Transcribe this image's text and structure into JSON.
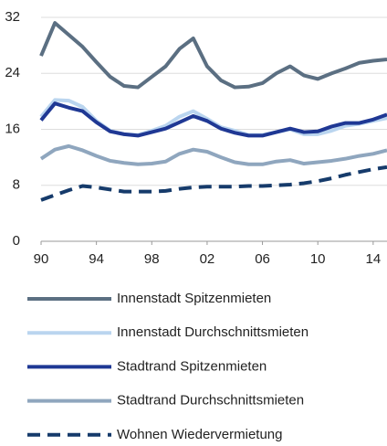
{
  "chart_data": {
    "type": "line",
    "x": [
      1990,
      1991,
      1992,
      1993,
      1994,
      1995,
      1996,
      1997,
      1998,
      1999,
      2000,
      2001,
      2002,
      2003,
      2004,
      2005,
      2006,
      2007,
      2008,
      2009,
      2010,
      2011,
      2012,
      2013,
      2014,
      2015
    ],
    "xlim": [
      1990,
      2015
    ],
    "xticks": [
      {
        "value": 1990,
        "label": "90"
      },
      {
        "value": 1994,
        "label": "94"
      },
      {
        "value": 1998,
        "label": "98"
      },
      {
        "value": 2002,
        "label": "02"
      },
      {
        "value": 2006,
        "label": "06"
      },
      {
        "value": 2010,
        "label": "10"
      },
      {
        "value": 2014,
        "label": "14"
      }
    ],
    "ylim": [
      0,
      32
    ],
    "yticks": [
      0,
      8,
      16,
      24,
      32
    ],
    "grid": true,
    "legend": "bottom",
    "series": [
      {
        "name": "Innenstadt Spitzenmieten",
        "color": "#5b6f82",
        "dashed": false,
        "values": [
          26.5,
          31.2,
          29.5,
          27.8,
          25.6,
          23.5,
          22.2,
          22.0,
          23.5,
          25.0,
          27.5,
          29.0,
          25.0,
          23.0,
          22.0,
          22.1,
          22.6,
          24.0,
          25.0,
          23.7,
          23.2,
          24.0,
          24.7,
          25.5,
          25.8,
          26.0
        ]
      },
      {
        "name": "Innenstadt Durchschnittsmieten",
        "color": "#bad5ef",
        "dashed": false,
        "values": [
          17.8,
          20.2,
          20.1,
          19.2,
          17.2,
          15.8,
          15.3,
          15.2,
          15.8,
          16.5,
          17.8,
          18.6,
          17.5,
          16.3,
          15.8,
          15.2,
          15.2,
          15.6,
          16.0,
          15.3,
          15.3,
          15.8,
          16.5,
          16.8,
          17.2,
          17.6
        ]
      },
      {
        "name": "Stadtrand Spitzenmieten",
        "color": "#1f3894",
        "dashed": false,
        "values": [
          17.3,
          19.7,
          19.1,
          18.6,
          17.0,
          15.7,
          15.3,
          15.1,
          15.6,
          16.1,
          17.0,
          17.9,
          17.2,
          16.1,
          15.5,
          15.1,
          15.1,
          15.6,
          16.1,
          15.6,
          15.7,
          16.4,
          16.9,
          16.9,
          17.4,
          18.1
        ]
      },
      {
        "name": "Stadtrand Durchschnittsmieten",
        "color": "#8fa6be",
        "dashed": false,
        "values": [
          11.8,
          13.1,
          13.6,
          13.0,
          12.2,
          11.5,
          11.2,
          11.0,
          11.1,
          11.4,
          12.5,
          13.1,
          12.8,
          12.0,
          11.3,
          11.0,
          11.0,
          11.4,
          11.6,
          11.1,
          11.3,
          11.5,
          11.8,
          12.2,
          12.5,
          13.0
        ]
      },
      {
        "name": "Wohnen Wiedervermietung",
        "color": "#163b6b",
        "dashed": true,
        "values": [
          5.9,
          6.6,
          7.3,
          7.9,
          7.7,
          7.4,
          7.1,
          7.1,
          7.1,
          7.2,
          7.5,
          7.7,
          7.8,
          7.8,
          7.8,
          7.9,
          7.9,
          8.0,
          8.1,
          8.3,
          8.6,
          9.0,
          9.5,
          9.9,
          10.3,
          10.6
        ]
      }
    ]
  }
}
